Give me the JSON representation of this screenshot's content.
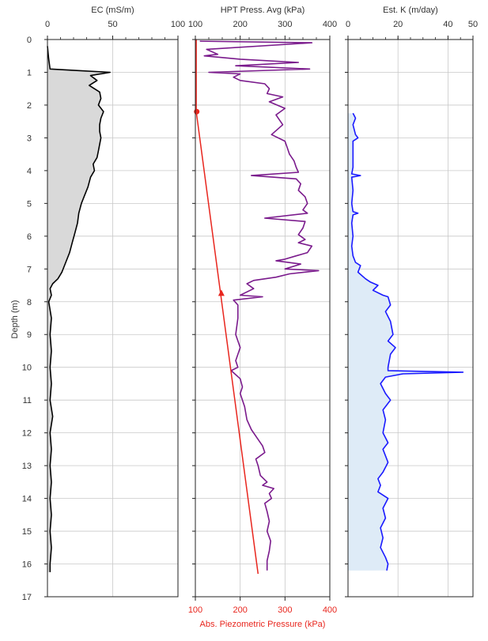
{
  "chart_data": {
    "type": "line",
    "ylabel": "Depth (m)",
    "y_inverted": true,
    "ylim": [
      0,
      17
    ],
    "y_ticks": [
      0,
      1,
      2,
      3,
      4,
      5,
      6,
      7,
      8,
      9,
      10,
      11,
      12,
      13,
      14,
      15,
      16,
      17
    ],
    "grid": true,
    "panels": [
      {
        "title": "EC (mS/m)",
        "xlim": [
          0,
          100
        ],
        "x_ticks": [
          0,
          50,
          100
        ],
        "fill": true,
        "series": [
          {
            "color": "#000000",
            "fill_color": "#d9d9d9",
            "points": [
              [
                0,
                0.2
              ],
              [
                1,
                0.6
              ],
              [
                2,
                0.9
              ],
              [
                25,
                0.95
              ],
              [
                48,
                1.0
              ],
              [
                33,
                1.1
              ],
              [
                38,
                1.25
              ],
              [
                32,
                1.4
              ],
              [
                40,
                1.6
              ],
              [
                41,
                1.8
              ],
              [
                39,
                2.0
              ],
              [
                43,
                2.2
              ],
              [
                41,
                2.4
              ],
              [
                40,
                2.6
              ],
              [
                40,
                2.8
              ],
              [
                41,
                3.0
              ],
              [
                40,
                3.2
              ],
              [
                39,
                3.4
              ],
              [
                38,
                3.6
              ],
              [
                35,
                3.8
              ],
              [
                36,
                4.0
              ],
              [
                33,
                4.2
              ],
              [
                31,
                4.5
              ],
              [
                28,
                4.8
              ],
              [
                26,
                5.0
              ],
              [
                24,
                5.3
              ],
              [
                23,
                5.6
              ],
              [
                21,
                5.9
              ],
              [
                19,
                6.2
              ],
              [
                17,
                6.5
              ],
              [
                14,
                6.8
              ],
              [
                11,
                7.1
              ],
              [
                8,
                7.3
              ],
              [
                4,
                7.45
              ],
              [
                2,
                7.6
              ],
              [
                3,
                7.8
              ],
              [
                1,
                8.0
              ],
              [
                3,
                8.5
              ],
              [
                2,
                9.0
              ],
              [
                3,
                9.5
              ],
              [
                2,
                10.0
              ],
              [
                3,
                10.5
              ],
              [
                2,
                11.0
              ],
              [
                4,
                11.5
              ],
              [
                2,
                12.0
              ],
              [
                3,
                12.5
              ],
              [
                2,
                13.0
              ],
              [
                3,
                13.5
              ],
              [
                2,
                14.0
              ],
              [
                3,
                14.5
              ],
              [
                2,
                15.0
              ],
              [
                3,
                15.5
              ],
              [
                2,
                16.0
              ],
              [
                2,
                16.25
              ]
            ]
          }
        ]
      },
      {
        "title": "HPT Press. Avg (kPa)",
        "xlabel": "Abs. Piezometric Pressure (kPa)",
        "xlim": [
          100,
          400
        ],
        "x_ticks": [
          100,
          200,
          300,
          400
        ],
        "bottom_x_ticks": [
          100,
          200,
          300,
          400
        ],
        "series": [
          {
            "color": "#7a1a8c",
            "points": [
              [
                110,
                0.05
              ],
              [
                360,
                0.1
              ],
              [
                125,
                0.3
              ],
              [
                150,
                0.45
              ],
              [
                120,
                0.5
              ],
              [
                200,
                0.6
              ],
              [
                330,
                0.7
              ],
              [
                190,
                0.8
              ],
              [
                355,
                0.9
              ],
              [
                130,
                1.0
              ],
              [
                200,
                1.05
              ],
              [
                185,
                1.15
              ],
              [
                200,
                1.25
              ],
              [
                255,
                1.35
              ],
              [
                265,
                1.5
              ],
              [
                260,
                1.65
              ],
              [
                295,
                1.75
              ],
              [
                265,
                1.9
              ],
              [
                300,
                2.1
              ],
              [
                280,
                2.3
              ],
              [
                295,
                2.6
              ],
              [
                270,
                2.9
              ],
              [
                300,
                3.1
              ],
              [
                305,
                3.3
              ],
              [
                310,
                3.5
              ],
              [
                320,
                3.7
              ],
              [
                325,
                3.9
              ],
              [
                330,
                4.05
              ],
              [
                225,
                4.15
              ],
              [
                325,
                4.25
              ],
              [
                335,
                4.4
              ],
              [
                330,
                4.6
              ],
              [
                345,
                4.8
              ],
              [
                350,
                5.0
              ],
              [
                340,
                5.2
              ],
              [
                350,
                5.3
              ],
              [
                255,
                5.45
              ],
              [
                345,
                5.55
              ],
              [
                340,
                5.75
              ],
              [
                330,
                5.95
              ],
              [
                345,
                6.1
              ],
              [
                330,
                6.2
              ],
              [
                360,
                6.3
              ],
              [
                350,
                6.5
              ],
              [
                325,
                6.6
              ],
              [
                300,
                6.7
              ],
              [
                280,
                6.75
              ],
              [
                335,
                6.85
              ],
              [
                300,
                7.0
              ],
              [
                375,
                7.05
              ],
              [
                310,
                7.15
              ],
              [
                280,
                7.25
              ],
              [
                230,
                7.35
              ],
              [
                215,
                7.45
              ],
              [
                230,
                7.6
              ],
              [
                200,
                7.8
              ],
              [
                250,
                7.85
              ],
              [
                185,
                7.95
              ],
              [
                195,
                8.1
              ],
              [
                195,
                8.5
              ],
              [
                190,
                9.0
              ],
              [
                200,
                9.4
              ],
              [
                190,
                9.8
              ],
              [
                195,
                10.0
              ],
              [
                180,
                10.1
              ],
              [
                200,
                10.35
              ],
              [
                205,
                10.6
              ],
              [
                200,
                10.8
              ],
              [
                210,
                11.2
              ],
              [
                215,
                11.6
              ],
              [
                225,
                11.9
              ],
              [
                240,
                12.2
              ],
              [
                250,
                12.4
              ],
              [
                255,
                12.6
              ],
              [
                235,
                12.8
              ],
              [
                240,
                13.0
              ],
              [
                245,
                13.3
              ],
              [
                260,
                13.5
              ],
              [
                250,
                13.6
              ],
              [
                275,
                13.7
              ],
              [
                265,
                13.85
              ],
              [
                270,
                14.0
              ],
              [
                255,
                14.15
              ],
              [
                260,
                14.4
              ],
              [
                265,
                14.7
              ],
              [
                260,
                15.0
              ],
              [
                268,
                15.3
              ],
              [
                265,
                15.6
              ],
              [
                260,
                15.9
              ],
              [
                260,
                16.2
              ]
            ]
          },
          {
            "color": "#e8261e",
            "axis": "bottom",
            "points": [
              [
                102,
                0
              ],
              [
                102,
                2.2
              ],
              [
                240,
                16.3
              ]
            ],
            "markers": [
              {
                "shape": "circle",
                "x": 103,
                "y": 2.2
              },
              {
                "shape": "triangle",
                "x": 158,
                "y": 7.75
              }
            ]
          }
        ]
      },
      {
        "title": "Est. K (m/day)",
        "xlim": [
          0,
          50
        ],
        "x_ticks": [
          0,
          20,
          40,
          50
        ],
        "fill": true,
        "series": [
          {
            "color": "#1a1aff",
            "fill_color": "#deebf7",
            "points": [
              [
                2,
                2.25
              ],
              [
                3,
                2.4
              ],
              [
                2,
                2.6
              ],
              [
                3,
                2.9
              ],
              [
                4,
                3.0
              ],
              [
                2,
                3.1
              ],
              [
                2,
                3.5
              ],
              [
                2,
                3.9
              ],
              [
                1.5,
                4.1
              ],
              [
                5,
                4.15
              ],
              [
                1.5,
                4.2
              ],
              [
                2,
                4.6
              ],
              [
                1.5,
                5.0
              ],
              [
                2,
                5.25
              ],
              [
                4,
                5.3
              ],
              [
                2,
                5.35
              ],
              [
                1.5,
                5.6
              ],
              [
                2,
                6.0
              ],
              [
                1.5,
                6.3
              ],
              [
                2,
                6.6
              ],
              [
                3,
                6.8
              ],
              [
                5,
                6.9
              ],
              [
                4,
                7.1
              ],
              [
                7,
                7.3
              ],
              [
                9,
                7.4
              ],
              [
                12,
                7.5
              ],
              [
                10,
                7.65
              ],
              [
                14,
                7.8
              ],
              [
                16,
                7.85
              ],
              [
                17,
                8.1
              ],
              [
                15,
                8.3
              ],
              [
                17,
                8.6
              ],
              [
                18,
                9.0
              ],
              [
                16,
                9.2
              ],
              [
                19,
                9.4
              ],
              [
                17,
                9.6
              ],
              [
                16,
                10.0
              ],
              [
                16,
                10.1
              ],
              [
                46,
                10.15
              ],
              [
                22,
                10.2
              ],
              [
                15,
                10.3
              ],
              [
                13,
                10.5
              ],
              [
                15,
                10.8
              ],
              [
                17,
                11.0
              ],
              [
                14,
                11.3
              ],
              [
                15,
                11.6
              ],
              [
                14,
                12.0
              ],
              [
                16,
                12.3
              ],
              [
                14,
                12.5
              ],
              [
                16,
                12.9
              ],
              [
                14,
                13.2
              ],
              [
                12,
                13.4
              ],
              [
                13,
                13.6
              ],
              [
                12,
                13.8
              ],
              [
                16,
                14.0
              ],
              [
                14,
                14.3
              ],
              [
                15,
                14.6
              ],
              [
                13,
                14.9
              ],
              [
                14,
                15.2
              ],
              [
                13,
                15.5
              ],
              [
                15,
                15.8
              ],
              [
                16,
                16.0
              ],
              [
                15.5,
                16.2
              ]
            ]
          }
        ]
      }
    ]
  }
}
